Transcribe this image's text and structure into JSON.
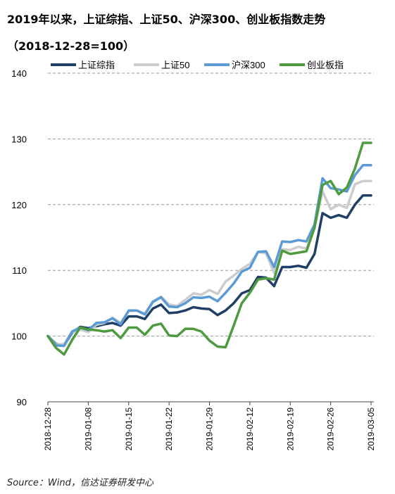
{
  "title_line1": "2019年以来，上证综指、上证50、沪深300、创业板指数走势",
  "title_line2": "（2018-12-28=100）",
  "source": "Source：Wind，信达证券研发中心",
  "chart_data": {
    "type": "line",
    "ylim": [
      90,
      140
    ],
    "yticks": [
      90,
      100,
      110,
      120,
      130,
      140
    ],
    "grid": "horizontal dashed",
    "legend_position": "top",
    "xticks": [
      "2018-12-28",
      "2019-01-08",
      "2019-01-15",
      "2019-01-22",
      "2019-01-29",
      "2019-02-12",
      "2019-02-19",
      "2019-02-26",
      "2019-03-05"
    ],
    "x": [
      "2018-12-28",
      "2019-01-02",
      "2019-01-03",
      "2019-01-04",
      "2019-01-07",
      "2019-01-08",
      "2019-01-09",
      "2019-01-10",
      "2019-01-11",
      "2019-01-14",
      "2019-01-15",
      "2019-01-16",
      "2019-01-17",
      "2019-01-18",
      "2019-01-21",
      "2019-01-22",
      "2019-01-23",
      "2019-01-24",
      "2019-01-25",
      "2019-01-28",
      "2019-01-29",
      "2019-01-30",
      "2019-01-31",
      "2019-02-01",
      "2019-02-11",
      "2019-02-12",
      "2019-02-13",
      "2019-02-14",
      "2019-02-15",
      "2019-02-18",
      "2019-02-19",
      "2019-02-20",
      "2019-02-21",
      "2019-02-22",
      "2019-02-25",
      "2019-02-26",
      "2019-02-27",
      "2019-02-28",
      "2019-03-01",
      "2019-03-04",
      "2019-03-05"
    ],
    "series": [
      {
        "name": "上证综指",
        "color": "#1f3f66",
        "values": [
          100.0,
          98.8,
          98.6,
          100.5,
          101.4,
          101.2,
          101.5,
          101.8,
          102.0,
          101.6,
          103.0,
          103.0,
          102.6,
          104.2,
          104.8,
          103.5,
          103.6,
          103.9,
          104.4,
          104.2,
          104.1,
          103.2,
          103.9,
          105.0,
          106.5,
          107.0,
          109.0,
          108.9,
          107.6,
          110.5,
          110.5,
          110.7,
          110.4,
          112.5,
          118.7,
          118.0,
          118.4,
          118.0,
          120.0,
          121.4,
          121.4
        ]
      },
      {
        "name": "上证50",
        "color": "#cccccc",
        "values": [
          100.0,
          98.7,
          98.8,
          100.6,
          101.0,
          100.6,
          101.7,
          102.0,
          102.8,
          102.0,
          103.8,
          103.9,
          103.4,
          105.3,
          106.0,
          104.8,
          104.6,
          105.5,
          106.5,
          106.3,
          107.0,
          106.4,
          108.3,
          109.2,
          110.2,
          111.0,
          112.8,
          112.6,
          109.6,
          113.2,
          113.1,
          113.6,
          113.3,
          116.5,
          122.0,
          119.3,
          120.0,
          119.5,
          123.1,
          123.6,
          123.6
        ]
      },
      {
        "name": "沪深300",
        "color": "#5b9bd5",
        "values": [
          100.0,
          98.6,
          98.5,
          100.7,
          101.3,
          100.9,
          102.0,
          102.1,
          102.7,
          101.8,
          103.9,
          103.9,
          103.3,
          105.2,
          105.9,
          104.5,
          104.4,
          105.0,
          105.9,
          105.8,
          106.0,
          105.3,
          106.6,
          108.0,
          109.8,
          110.4,
          112.8,
          112.9,
          110.5,
          114.4,
          114.3,
          114.6,
          114.4,
          117.0,
          124.0,
          122.5,
          122.3,
          122.0,
          124.5,
          126.0,
          126.0
        ]
      },
      {
        "name": "创业板指",
        "color": "#4e9a3f",
        "values": [
          100.0,
          98.2,
          97.2,
          99.4,
          101.3,
          101.0,
          100.9,
          100.7,
          100.9,
          99.7,
          101.3,
          101.3,
          100.2,
          101.6,
          101.9,
          100.1,
          100.0,
          101.1,
          101.1,
          100.7,
          99.3,
          98.4,
          98.3,
          101.6,
          105.0,
          106.6,
          108.6,
          108.8,
          108.6,
          113.0,
          112.5,
          112.7,
          112.9,
          116.5,
          123.0,
          123.6,
          121.6,
          122.6,
          125.5,
          129.4,
          129.4
        ]
      }
    ]
  }
}
